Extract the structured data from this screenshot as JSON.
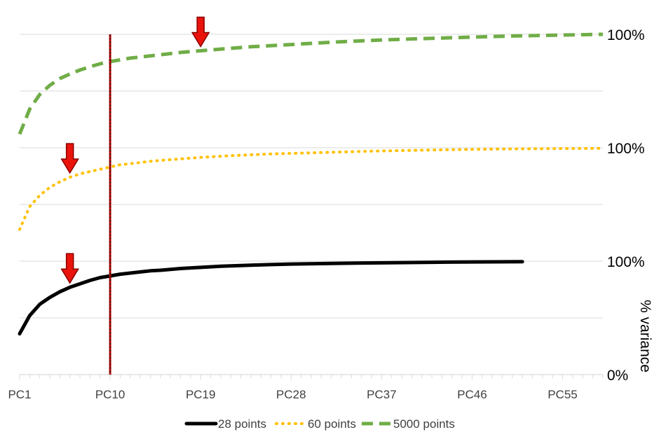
{
  "chart_data": {
    "type": "line",
    "title": "",
    "xlabel": "",
    "ylabel": "% variance",
    "grid": true,
    "legend_position": "bottom",
    "x_tick_labels": [
      "PC1",
      "PC10",
      "PC19",
      "PC28",
      "PC37",
      "PC46",
      "PC55"
    ],
    "x_range": [
      1,
      59
    ],
    "right_axis_labels": [
      "100%",
      "100%",
      "100%",
      "0%"
    ],
    "marker_line_x": 10,
    "series": [
      {
        "name": "28 points",
        "color": "#000000",
        "style": "solid",
        "arrow_at": 6,
        "x": [
          1,
          2,
          3,
          4,
          5,
          6,
          7,
          8,
          9,
          10,
          11,
          12,
          13,
          14,
          15,
          17,
          19,
          21,
          24,
          28,
          32,
          37,
          42,
          46,
          51
        ],
        "values": [
          0.36,
          0.52,
          0.62,
          0.68,
          0.73,
          0.77,
          0.8,
          0.83,
          0.855,
          0.87,
          0.885,
          0.895,
          0.905,
          0.915,
          0.92,
          0.935,
          0.945,
          0.955,
          0.965,
          0.975,
          0.98,
          0.985,
          0.99,
          0.993,
          0.995
        ]
      },
      {
        "name": "60 points",
        "color": "#FFC000",
        "style": "dotted",
        "arrow_at": 6,
        "x": [
          1,
          2,
          3,
          4,
          5,
          6,
          7,
          8,
          9,
          10,
          11,
          12,
          14,
          16,
          19,
          22,
          26,
          30,
          36,
          42,
          50,
          59
        ],
        "values": [
          0.28,
          0.48,
          0.58,
          0.65,
          0.7,
          0.74,
          0.77,
          0.79,
          0.81,
          0.83,
          0.85,
          0.86,
          0.88,
          0.895,
          0.915,
          0.93,
          0.945,
          0.955,
          0.97,
          0.98,
          0.99,
          0.995
        ]
      },
      {
        "name": "5000 points",
        "color": "#70AD47",
        "style": "dashed",
        "arrow_at": 19,
        "x": [
          1,
          2,
          3,
          4,
          5,
          6,
          7,
          8,
          9,
          10,
          11,
          12,
          13,
          15,
          17,
          19,
          21,
          24,
          28,
          32,
          37,
          42,
          50,
          59
        ],
        "values": [
          0.12,
          0.34,
          0.47,
          0.55,
          0.61,
          0.65,
          0.685,
          0.715,
          0.74,
          0.76,
          0.775,
          0.79,
          0.8,
          0.82,
          0.84,
          0.855,
          0.87,
          0.89,
          0.91,
          0.93,
          0.95,
          0.965,
          0.985,
          1.0
        ]
      }
    ]
  }
}
